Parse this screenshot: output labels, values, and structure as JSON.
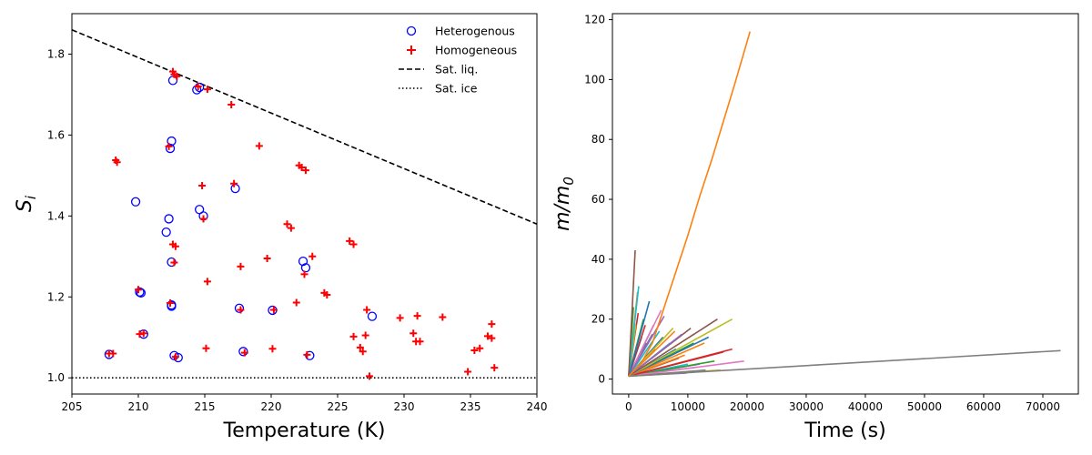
{
  "chart_data": [
    {
      "type": "scatter",
      "xlabel": "Temperature (K)",
      "ylabel_base": "S",
      "ylabel_sub": "i",
      "xlim": [
        205,
        240
      ],
      "ylim": [
        0.96,
        1.9
      ],
      "xticks": [
        "205",
        "210",
        "215",
        "220",
        "225",
        "230",
        "235",
        "240"
      ],
      "yticks": [
        "1.0",
        "1.2",
        "1.4",
        "1.6",
        "1.8"
      ],
      "legend_position": "top-right",
      "legend": [
        "Heterogenous",
        "Homogeneous",
        "Sat. liq.",
        "Sat. ice"
      ],
      "colors": {
        "heterogeneous": "#0000ff",
        "homogeneous": "#ff0000",
        "lines": "#000000"
      },
      "sat_liq": [
        [
          205,
          1.86
        ],
        [
          240,
          1.38
        ]
      ],
      "sat_ice": [
        [
          205,
          1.0
        ],
        [
          240,
          1.0
        ]
      ],
      "heterogeneous": [
        [
          207.8,
          1.058
        ],
        [
          209.8,
          1.435
        ],
        [
          210.1,
          1.212
        ],
        [
          210.2,
          1.21
        ],
        [
          210.4,
          1.108
        ],
        [
          212.1,
          1.36
        ],
        [
          212.3,
          1.393
        ],
        [
          212.4,
          1.567
        ],
        [
          212.5,
          1.286
        ],
        [
          212.5,
          1.585
        ],
        [
          212.5,
          1.18
        ],
        [
          212.5,
          1.177
        ],
        [
          212.6,
          1.735
        ],
        [
          212.7,
          1.055
        ],
        [
          213.0,
          1.05
        ],
        [
          214.4,
          1.712
        ],
        [
          214.6,
          1.718
        ],
        [
          214.6,
          1.416
        ],
        [
          214.9,
          1.4
        ],
        [
          217.3,
          1.468
        ],
        [
          217.6,
          1.172
        ],
        [
          217.9,
          1.065
        ],
        [
          220.1,
          1.167
        ],
        [
          222.4,
          1.288
        ],
        [
          222.6,
          1.272
        ],
        [
          222.9,
          1.055
        ],
        [
          227.6,
          1.152
        ]
      ],
      "homogeneous": [
        [
          207.8,
          1.06
        ],
        [
          208.1,
          1.06
        ],
        [
          208.3,
          1.538
        ],
        [
          208.4,
          1.533
        ],
        [
          210.0,
          1.218
        ],
        [
          210.1,
          1.108
        ],
        [
          210.4,
          1.11
        ],
        [
          212.3,
          1.572
        ],
        [
          212.4,
          1.185
        ],
        [
          212.6,
          1.757
        ],
        [
          212.7,
          1.75
        ],
        [
          212.6,
          1.33
        ],
        [
          212.8,
          1.325
        ],
        [
          212.7,
          1.285
        ],
        [
          212.8,
          1.052
        ],
        [
          212.9,
          1.745
        ],
        [
          214.5,
          1.72
        ],
        [
          214.8,
          1.475
        ],
        [
          214.9,
          1.393
        ],
        [
          215.1,
          1.073
        ],
        [
          215.2,
          1.713
        ],
        [
          215.2,
          1.238
        ],
        [
          217.0,
          1.675
        ],
        [
          217.2,
          1.48
        ],
        [
          217.7,
          1.275
        ],
        [
          217.7,
          1.168
        ],
        [
          218.0,
          1.062
        ],
        [
          219.1,
          1.573
        ],
        [
          219.7,
          1.295
        ],
        [
          220.1,
          1.072
        ],
        [
          220.2,
          1.168
        ],
        [
          221.2,
          1.38
        ],
        [
          221.5,
          1.37
        ],
        [
          221.9,
          1.186
        ],
        [
          222.1,
          1.525
        ],
        [
          222.3,
          1.52
        ],
        [
          222.6,
          1.513
        ],
        [
          222.5,
          1.256
        ],
        [
          222.7,
          1.057
        ],
        [
          223.1,
          1.3
        ],
        [
          224.0,
          1.21
        ],
        [
          224.2,
          1.205
        ],
        [
          225.9,
          1.338
        ],
        [
          226.2,
          1.33
        ],
        [
          226.2,
          1.102
        ],
        [
          226.7,
          1.075
        ],
        [
          226.9,
          1.065
        ],
        [
          227.1,
          1.105
        ],
        [
          227.2,
          1.168
        ],
        [
          227.4,
          1.004
        ],
        [
          229.7,
          1.148
        ],
        [
          230.7,
          1.11
        ],
        [
          230.9,
          1.09
        ],
        [
          231.0,
          1.153
        ],
        [
          231.2,
          1.09
        ],
        [
          232.9,
          1.15
        ],
        [
          234.8,
          1.015
        ],
        [
          235.3,
          1.068
        ],
        [
          235.7,
          1.073
        ],
        [
          236.3,
          1.103
        ],
        [
          236.6,
          1.133
        ],
        [
          236.6,
          1.098
        ],
        [
          236.8,
          1.025
        ]
      ]
    },
    {
      "type": "line",
      "xlabel": "Time (s)",
      "ylabel_base": "m/m",
      "ylabel_sub": "0",
      "xlim": [
        -2750,
        76000
      ],
      "ylim": [
        -5,
        122
      ],
      "xticks": [
        "0",
        "10000",
        "20000",
        "30000",
        "40000",
        "50000",
        "60000",
        "70000"
      ],
      "yticks": [
        "0",
        "20",
        "40",
        "60",
        "80",
        "100",
        "120"
      ],
      "series": [
        {
          "name": "orange-long",
          "color": "#ff7f0e",
          "x": [
            0,
            2000,
            4000,
            6000,
            8000,
            10000,
            12000,
            14000,
            16000,
            18000,
            20500
          ],
          "y": [
            1,
            5,
            12,
            24,
            36,
            48,
            61,
            73,
            86,
            99,
            116
          ]
        },
        {
          "name": "gray-long",
          "color": "#7f7f7f",
          "x": [
            0,
            73000
          ],
          "y": [
            1,
            9.5
          ]
        },
        {
          "name": "brown-spike",
          "color": "#8c564b",
          "x": [
            0,
            1100
          ],
          "y": [
            1,
            43
          ]
        },
        {
          "name": "cyan-spike",
          "color": "#17becf",
          "x": [
            0,
            1700
          ],
          "y": [
            1,
            31
          ]
        },
        {
          "name": "blue-1",
          "color": "#1f77b4",
          "x": [
            0,
            3500
          ],
          "y": [
            1,
            26
          ]
        },
        {
          "name": "orange-1",
          "color": "#ff7f0e",
          "x": [
            0,
            1500
          ],
          "y": [
            1,
            29
          ]
        },
        {
          "name": "green-1",
          "color": "#2ca02c",
          "x": [
            0,
            2500
          ],
          "y": [
            1,
            20
          ]
        },
        {
          "name": "red-1",
          "color": "#d62728",
          "x": [
            0,
            2800
          ],
          "y": [
            1,
            18
          ]
        },
        {
          "name": "purple-1",
          "color": "#9467bd",
          "x": [
            0,
            6000
          ],
          "y": [
            1,
            21
          ]
        },
        {
          "name": "brown-1",
          "color": "#8c564b",
          "x": [
            0,
            15000
          ],
          "y": [
            1,
            20
          ]
        },
        {
          "name": "olive-1",
          "color": "#bcbd22",
          "x": [
            0,
            17500
          ],
          "y": [
            1,
            20
          ]
        },
        {
          "name": "pink-1",
          "color": "#e377c2",
          "x": [
            0,
            5500
          ],
          "y": [
            1,
            23
          ]
        },
        {
          "name": "gray-1",
          "color": "#7f7f7f",
          "x": [
            0,
            4000
          ],
          "y": [
            1,
            15
          ]
        },
        {
          "name": "cyan-1",
          "color": "#17becf",
          "x": [
            0,
            5200
          ],
          "y": [
            1,
            16
          ]
        },
        {
          "name": "blue-2",
          "color": "#1f77b4",
          "x": [
            0,
            13500
          ],
          "y": [
            1,
            14
          ]
        },
        {
          "name": "orange-2",
          "color": "#ff7f0e",
          "x": [
            0,
            12800
          ],
          "y": [
            1,
            12
          ]
        },
        {
          "name": "green-2",
          "color": "#2ca02c",
          "x": [
            0,
            11000
          ],
          "y": [
            1,
            12
          ]
        },
        {
          "name": "red-2",
          "color": "#d62728",
          "x": [
            0,
            17500
          ],
          "y": [
            1,
            10
          ]
        },
        {
          "name": "purple-2",
          "color": "#9467bd",
          "x": [
            0,
            9000
          ],
          "y": [
            1,
            15
          ]
        },
        {
          "name": "brown-2",
          "color": "#8c564b",
          "x": [
            0,
            10500
          ],
          "y": [
            1,
            17
          ]
        },
        {
          "name": "pink-2",
          "color": "#e377c2",
          "x": [
            0,
            19500
          ],
          "y": [
            1,
            6
          ]
        },
        {
          "name": "olive-2",
          "color": "#bcbd22",
          "x": [
            0,
            7500
          ],
          "y": [
            1,
            17
          ]
        },
        {
          "name": "cyan-2",
          "color": "#17becf",
          "x": [
            0,
            7000
          ],
          "y": [
            1,
            12
          ]
        },
        {
          "name": "blue-3",
          "color": "#1f77b4",
          "x": [
            0,
            8000
          ],
          "y": [
            1,
            10
          ]
        },
        {
          "name": "orange-3",
          "color": "#ff7f0e",
          "x": [
            0,
            9500
          ],
          "y": [
            1,
            8
          ]
        },
        {
          "name": "green-3",
          "color": "#2ca02c",
          "x": [
            0,
            14500
          ],
          "y": [
            1,
            6
          ]
        },
        {
          "name": "red-3",
          "color": "#d62728",
          "x": [
            0,
            16000
          ],
          "y": [
            1,
            9
          ]
        },
        {
          "name": "purple-3",
          "color": "#9467bd",
          "x": [
            0,
            12000
          ],
          "y": [
            1,
            5
          ]
        },
        {
          "name": "brown-3",
          "color": "#8c564b",
          "x": [
            0,
            8500
          ],
          "y": [
            1,
            7
          ]
        },
        {
          "name": "pink-3",
          "color": "#e377c2",
          "x": [
            0,
            11500
          ],
          "y": [
            1,
            4
          ]
        },
        {
          "name": "gray-2",
          "color": "#7f7f7f",
          "x": [
            0,
            13000
          ],
          "y": [
            1,
            3
          ]
        },
        {
          "name": "olive-3",
          "color": "#bcbd22",
          "x": [
            0,
            15500
          ],
          "y": [
            1,
            3
          ]
        },
        {
          "name": "cyan-3",
          "color": "#17becf",
          "x": [
            0,
            10000
          ],
          "y": [
            1,
            5
          ]
        },
        {
          "name": "blue-4",
          "color": "#1f77b4",
          "x": [
            0,
            3000
          ],
          "y": [
            1,
            12
          ]
        },
        {
          "name": "orange-4",
          "color": "#ff7f0e",
          "x": [
            0,
            4500
          ],
          "y": [
            1,
            10
          ]
        },
        {
          "name": "green-4",
          "color": "#2ca02c",
          "x": [
            0,
            6500
          ],
          "y": [
            1,
            8
          ]
        },
        {
          "name": "red-4",
          "color": "#d62728",
          "x": [
            0,
            5000
          ],
          "y": [
            1,
            6
          ]
        },
        {
          "name": "purple-4",
          "color": "#9467bd",
          "x": [
            0,
            2000
          ],
          "y": [
            1,
            16
          ]
        },
        {
          "name": "brown-4",
          "color": "#8c564b",
          "x": [
            0,
            3800
          ],
          "y": [
            1,
            9
          ]
        },
        {
          "name": "pink-4",
          "color": "#e377c2",
          "x": [
            0,
            6800
          ],
          "y": [
            1,
            3
          ]
        },
        {
          "name": "gray-3",
          "color": "#7f7f7f",
          "x": [
            0,
            9800
          ],
          "y": [
            1,
            2
          ]
        },
        {
          "name": "olive-4",
          "color": "#bcbd22",
          "x": [
            0,
            1200
          ],
          "y": [
            1,
            18
          ]
        },
        {
          "name": "cyan-4",
          "color": "#17becf",
          "x": [
            0,
            2200
          ],
          "y": [
            1,
            14
          ]
        },
        {
          "name": "green-5",
          "color": "#2ca02c",
          "x": [
            0,
            800
          ],
          "y": [
            1,
            24
          ]
        },
        {
          "name": "red-5",
          "color": "#d62728",
          "x": [
            0,
            1600
          ],
          "y": [
            1,
            22
          ]
        },
        {
          "name": "blue-5",
          "color": "#1f77b4",
          "x": [
            0,
            5800
          ],
          "y": [
            1,
            14
          ]
        },
        {
          "name": "orange-5",
          "color": "#ff7f0e",
          "x": [
            0,
            7800
          ],
          "y": [
            1,
            16
          ]
        },
        {
          "name": "purple-5",
          "color": "#9467bd",
          "x": [
            0,
            4200
          ],
          "y": [
            1,
            18
          ]
        }
      ]
    }
  ]
}
